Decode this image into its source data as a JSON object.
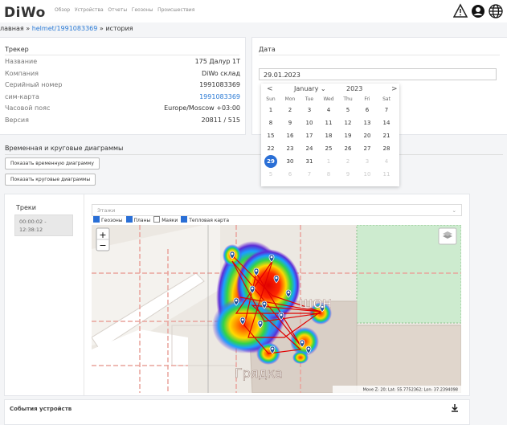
{
  "header": {
    "logo": "DiWo",
    "nav": [
      "Обзор",
      "Устройства",
      "Отчеты",
      "Геозоны",
      "Происшествия"
    ]
  },
  "breadcrumb": {
    "items": [
      "лавная",
      "helmet/1991083369",
      "история"
    ],
    "separator": "»"
  },
  "tracker": {
    "title": "Трекер",
    "rows": [
      [
        "Название",
        "175 Далур 1Т"
      ],
      [
        "Компания",
        "DiWo склад"
      ],
      [
        "Серийный номер",
        "1991083369"
      ],
      [
        "сим-карта",
        "1991083369"
      ],
      [
        "Часовой пояс",
        "Europe/Moscow +03:00"
      ],
      [
        "Версия",
        "20811 / 515"
      ]
    ]
  },
  "date": {
    "title": "Дата",
    "value": "29.01.2023",
    "calendar": {
      "prev": "<",
      "next": ">",
      "month": "January",
      "year": "2023",
      "weekdays": [
        "Sun",
        "Mon",
        "Tue",
        "Wed",
        "Thu",
        "Fri",
        "Sat"
      ],
      "weeks": [
        [
          1,
          2,
          3,
          4,
          5,
          6,
          7
        ],
        [
          8,
          9,
          10,
          11,
          12,
          13,
          14
        ],
        [
          15,
          16,
          17,
          18,
          19,
          20,
          21
        ],
        [
          22,
          23,
          24,
          25,
          26,
          27,
          28
        ],
        [
          29,
          30,
          31,
          1,
          2,
          3,
          4
        ],
        [
          5,
          6,
          7,
          8,
          9,
          10,
          11
        ]
      ]
    }
  },
  "diagrams": {
    "title": "Временная и круговые диаграммы",
    "buttons": [
      "Показать временную диаграмму",
      "Показать круговые диаграммы"
    ]
  },
  "map": {
    "tracks_title": "Треки",
    "track": "00:00:02 - 12:38:12",
    "floors": "Этажи",
    "layers": [
      {
        "name": "Геозоны",
        "checked": true
      },
      {
        "name": "Планы",
        "checked": true
      },
      {
        "name": "Маяки",
        "checked": false
      },
      {
        "name": "Тепловая карта",
        "checked": true
      }
    ],
    "zoom_in": "+",
    "zoom_out": "−",
    "labels": [
      "шон",
      "Грядка"
    ],
    "status": "Move Z: 20; Lat: 55.7752362; Lon: 37.2394098"
  },
  "events": {
    "title": "События устройств"
  }
}
